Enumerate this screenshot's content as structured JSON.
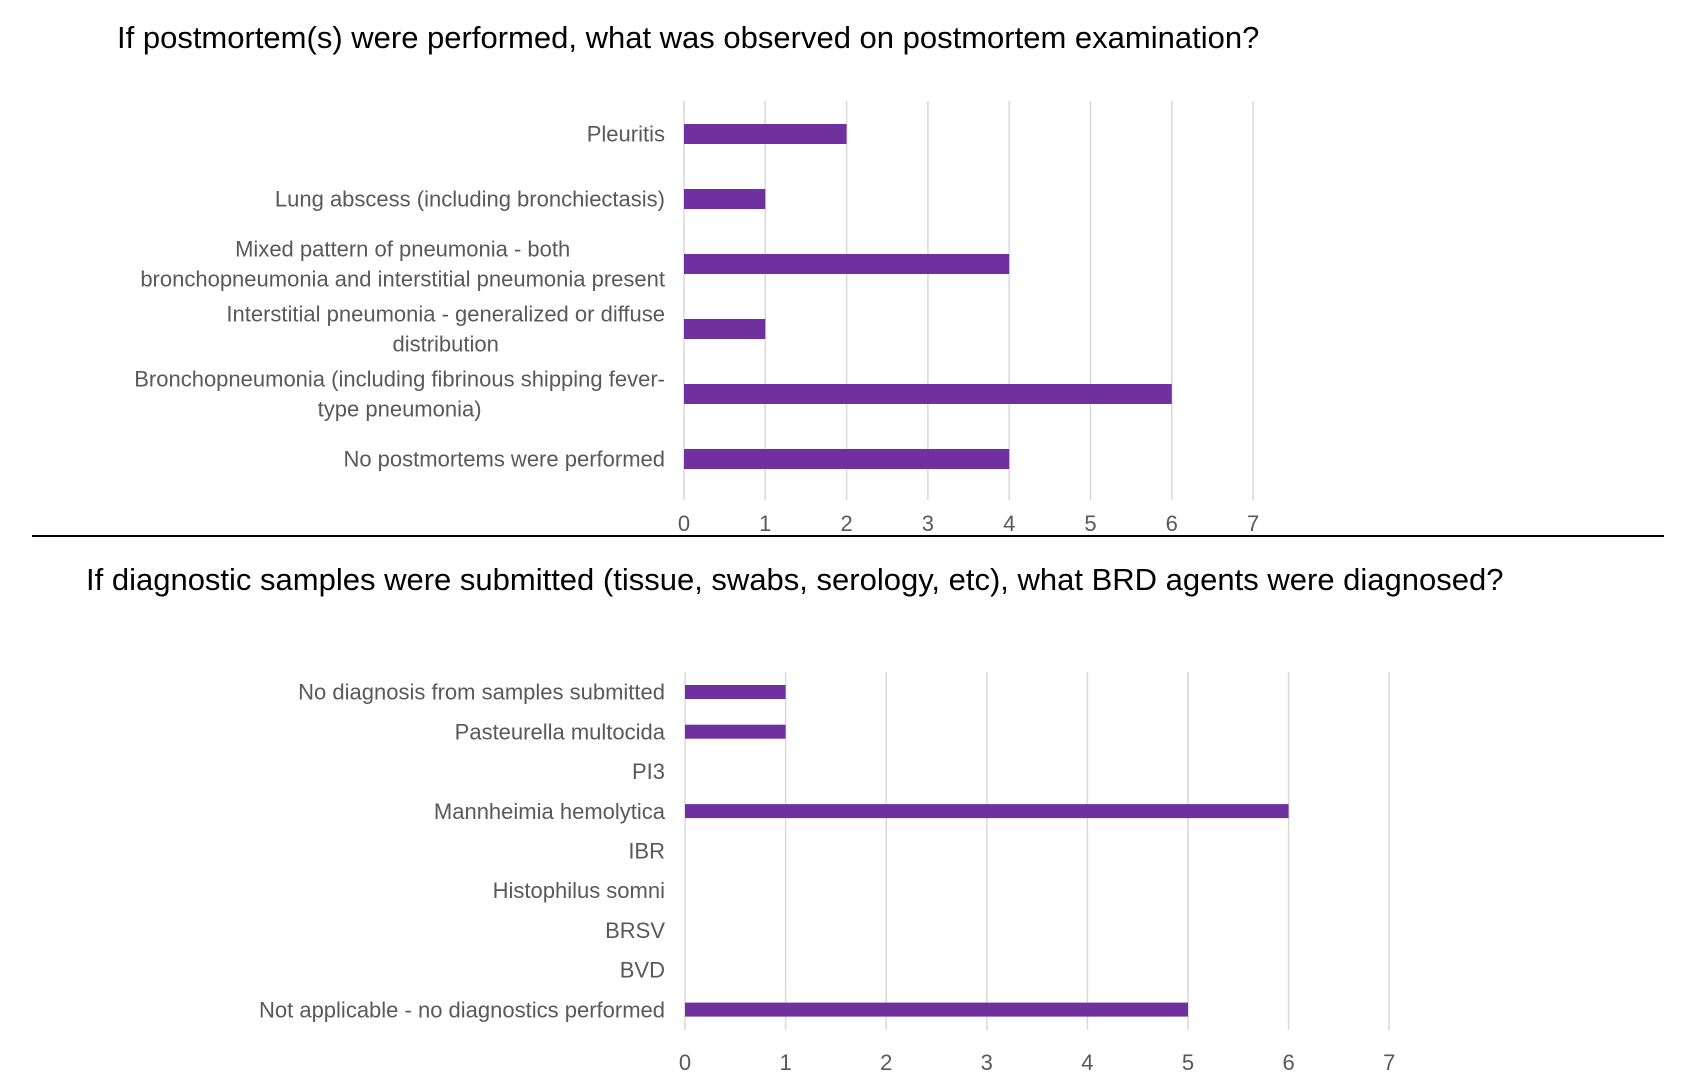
{
  "colors": {
    "bar": "#7030a0",
    "grid": "#d9d9d9",
    "label": "#595959",
    "title": "#000000",
    "divider": "#000000"
  },
  "chart_data": [
    {
      "type": "bar",
      "orientation": "horizontal",
      "title": "If postmortem(s) were performed, what was observed on postmortem examination?",
      "categories": [
        "Pleuritis",
        "Lung abscess (including bronchiectasis)",
        "Mixed pattern of pneumonia - both bronchopneumonia and interstitial pneumonia present",
        "Interstitial pneumonia - generalized or diffuse distribution",
        "Bronchopneumonia (including fibrinous shipping fever-type pneumonia)",
        "No postmortems were performed"
      ],
      "category_label_lines": [
        [
          "Pleuritis"
        ],
        [
          "Lung abscess (including bronchiectasis)"
        ],
        [
          "Mixed pattern of pneumonia - both",
          "bronchopneumonia and interstitial pneumonia present"
        ],
        [
          "Interstitial pneumonia - generalized or diffuse",
          "distribution"
        ],
        [
          "Bronchopneumonia (including fibrinous shipping fever-",
          "type pneumonia)"
        ],
        [
          "No postmortems were performed"
        ]
      ],
      "values": [
        2,
        1,
        4,
        1,
        6,
        4
      ],
      "xlim": [
        0,
        7
      ],
      "ticks": [
        "0",
        "1",
        "2",
        "3",
        "4",
        "5",
        "6",
        "7"
      ],
      "grid": true,
      "legend": "none"
    },
    {
      "type": "bar",
      "orientation": "horizontal",
      "title": "If diagnostic samples were submitted (tissue, swabs, serology, etc), what BRD agents were diagnosed?",
      "categories": [
        "No diagnosis from samples submitted",
        "Pasteurella multocida",
        "PI3",
        "Mannheimia hemolytica",
        "IBR",
        "Histophilus somni",
        "BRSV",
        "BVD",
        "Not applicable - no diagnostics performed"
      ],
      "category_label_lines": [
        [
          "No diagnosis from samples submitted"
        ],
        [
          "Pasteurella multocida"
        ],
        [
          "PI3"
        ],
        [
          "Mannheimia hemolytica"
        ],
        [
          "IBR"
        ],
        [
          "Histophilus somni"
        ],
        [
          "BRSV"
        ],
        [
          "BVD"
        ],
        [
          "Not applicable - no diagnostics performed"
        ]
      ],
      "values": [
        1,
        1,
        0,
        6,
        0,
        0,
        0,
        0,
        5
      ],
      "xlim": [
        0,
        7
      ],
      "ticks": [
        "0",
        "1",
        "2",
        "3",
        "4",
        "5",
        "6",
        "7"
      ],
      "grid": true,
      "legend": "none"
    }
  ]
}
